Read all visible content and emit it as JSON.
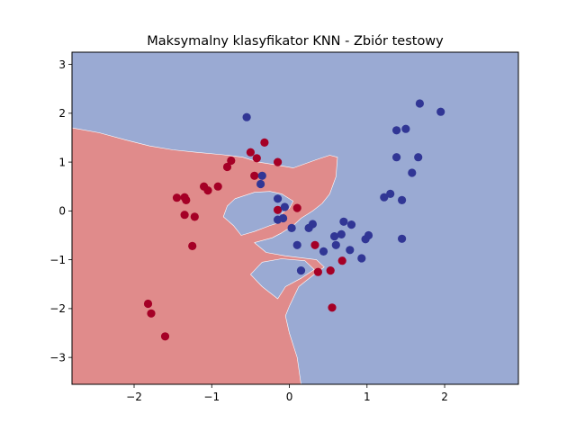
{
  "chart_data": {
    "type": "scatter",
    "title": "Maksymalny klasyfikator KNN - Zbiór testowy",
    "xlabel": "",
    "ylabel": "",
    "xlim": [
      -2.8,
      2.95
    ],
    "ylim": [
      -3.55,
      3.25
    ],
    "xticks": [
      -2,
      -1,
      0,
      1,
      2
    ],
    "yticks": [
      -3,
      -2,
      -1,
      0,
      1,
      2,
      3
    ],
    "grid": false,
    "colors": {
      "class_red": "#a50026",
      "class_blue": "#313695",
      "region_red": "#e08b8b",
      "region_blue": "#9aaad3"
    },
    "decision_region_red": [
      [
        -2.8,
        1.7
      ],
      [
        -2.45,
        1.6
      ],
      [
        -2.1,
        1.45
      ],
      [
        -1.8,
        1.33
      ],
      [
        -1.5,
        1.25
      ],
      [
        -1.2,
        1.2
      ],
      [
        -0.85,
        1.15
      ],
      [
        -0.6,
        1.1
      ],
      [
        -0.4,
        1.0
      ],
      [
        -0.2,
        0.95
      ],
      [
        0.05,
        0.88
      ],
      [
        0.35,
        1.05
      ],
      [
        0.52,
        1.14
      ],
      [
        0.62,
        1.1
      ],
      [
        0.6,
        0.7
      ],
      [
        0.52,
        0.35
      ],
      [
        0.42,
        0.15
      ],
      [
        0.3,
        0.0
      ],
      [
        0.15,
        -0.15
      ],
      [
        0.05,
        -0.3
      ],
      [
        -0.1,
        -0.45
      ],
      [
        -0.22,
        -0.55
      ],
      [
        -0.45,
        -0.65
      ],
      [
        -0.3,
        -0.85
      ],
      [
        -0.05,
        -0.92
      ],
      [
        0.35,
        -1.0
      ],
      [
        0.45,
        -1.15
      ],
      [
        0.32,
        -1.3
      ],
      [
        0.12,
        -1.55
      ],
      [
        0.0,
        -1.95
      ],
      [
        -0.05,
        -2.15
      ],
      [
        0.0,
        -2.5
      ],
      [
        0.1,
        -3.0
      ],
      [
        0.15,
        -3.55
      ],
      [
        -2.8,
        -3.55
      ]
    ],
    "decision_region_blue_islands": [
      [
        [
          -0.7,
          0.25
        ],
        [
          -0.45,
          0.38
        ],
        [
          -0.25,
          0.4
        ],
        [
          -0.1,
          0.35
        ],
        [
          0.05,
          0.2
        ],
        [
          0.0,
          0.05
        ],
        [
          -0.1,
          -0.05
        ],
        [
          -0.05,
          -0.2
        ],
        [
          -0.25,
          -0.3
        ],
        [
          -0.45,
          -0.42
        ],
        [
          -0.62,
          -0.5
        ],
        [
          -0.72,
          -0.3
        ],
        [
          -0.85,
          -0.12
        ],
        [
          -0.8,
          0.1
        ]
      ],
      [
        [
          -0.35,
          -1.05
        ],
        [
          -0.1,
          -0.98
        ],
        [
          0.2,
          -1.02
        ],
        [
          0.32,
          -1.2
        ],
        [
          0.15,
          -1.38
        ],
        [
          -0.05,
          -1.55
        ],
        [
          -0.15,
          -1.8
        ],
        [
          -0.35,
          -1.55
        ],
        [
          -0.5,
          -1.3
        ]
      ]
    ],
    "series": [
      {
        "name": "",
        "color": "#a50026",
        "points": [
          [
            -1.82,
            -1.9
          ],
          [
            -1.78,
            -2.1
          ],
          [
            -1.6,
            -2.57
          ],
          [
            -1.45,
            0.27
          ],
          [
            -1.35,
            0.28
          ],
          [
            -1.33,
            0.22
          ],
          [
            -1.35,
            -0.08
          ],
          [
            -1.22,
            -0.12
          ],
          [
            -1.25,
            -0.72
          ],
          [
            -1.1,
            0.5
          ],
          [
            -1.05,
            0.42
          ],
          [
            -0.92,
            0.5
          ],
          [
            -0.8,
            0.9
          ],
          [
            -0.75,
            1.03
          ],
          [
            -0.5,
            1.2
          ],
          [
            -0.42,
            1.08
          ],
          [
            -0.45,
            0.72
          ],
          [
            -0.32,
            1.4
          ],
          [
            -0.15,
            1.0
          ],
          [
            -0.15,
            0.02
          ],
          [
            0.1,
            0.06
          ],
          [
            0.33,
            -0.7
          ],
          [
            0.37,
            -1.25
          ],
          [
            0.53,
            -1.22
          ],
          [
            0.55,
            -1.98
          ],
          [
            0.68,
            -1.02
          ]
        ]
      },
      {
        "name": "",
        "color": "#313695",
        "points": [
          [
            -0.55,
            1.92
          ],
          [
            -0.35,
            0.72
          ],
          [
            -0.37,
            0.55
          ],
          [
            -0.15,
            0.25
          ],
          [
            -0.06,
            0.08
          ],
          [
            -0.15,
            -0.18
          ],
          [
            -0.08,
            -0.15
          ],
          [
            0.03,
            -0.35
          ],
          [
            0.1,
            -0.7
          ],
          [
            0.15,
            -1.22
          ],
          [
            0.25,
            -0.35
          ],
          [
            0.3,
            -0.27
          ],
          [
            0.44,
            -0.83
          ],
          [
            0.58,
            -0.52
          ],
          [
            0.6,
            -0.7
          ],
          [
            0.67,
            -0.48
          ],
          [
            0.7,
            -0.22
          ],
          [
            0.78,
            -0.8
          ],
          [
            0.8,
            -0.28
          ],
          [
            0.93,
            -0.97
          ],
          [
            0.98,
            -0.58
          ],
          [
            1.02,
            -0.5
          ],
          [
            1.22,
            0.28
          ],
          [
            1.3,
            0.35
          ],
          [
            1.38,
            1.65
          ],
          [
            1.38,
            1.1
          ],
          [
            1.45,
            0.22
          ],
          [
            1.45,
            -0.57
          ],
          [
            1.5,
            1.68
          ],
          [
            1.58,
            0.78
          ],
          [
            1.66,
            1.1
          ],
          [
            1.68,
            2.2
          ],
          [
            1.95,
            2.03
          ]
        ]
      }
    ]
  }
}
